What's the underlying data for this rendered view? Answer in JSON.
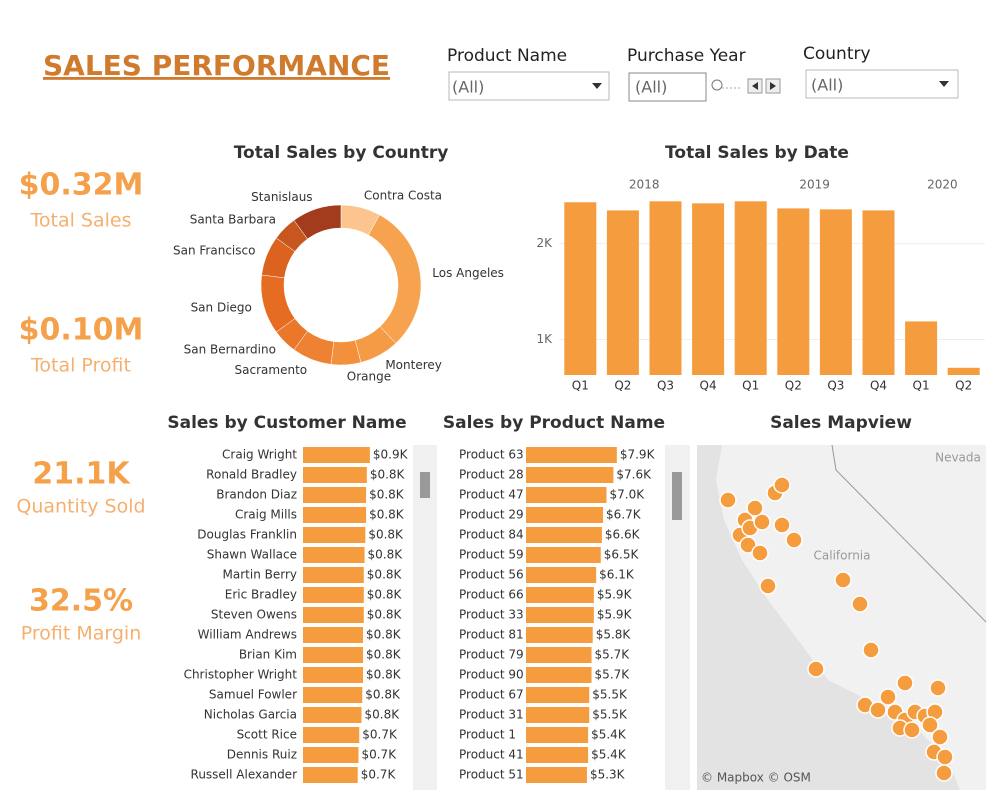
{
  "header": {
    "title": "SALES PERFORMANCE"
  },
  "filters": [
    {
      "label": "Product Name",
      "value": "(All)"
    },
    {
      "label": "Purchase Year",
      "value": "(All)"
    },
    {
      "label": "Country",
      "value": "(All)"
    }
  ],
  "kpis": [
    {
      "value": "$0.32M",
      "label": "Total Sales"
    },
    {
      "value": "$0.10M",
      "label": "Total Profit"
    },
    {
      "value": "21.1K",
      "label": "Quantity Sold"
    },
    {
      "value": "32.5%",
      "label": "Profit Margin"
    }
  ],
  "chart_data": [
    {
      "type": "pie",
      "title": "Total Sales by Country",
      "categories": [
        "Contra Costa",
        "Los Angeles",
        "Monterey",
        "Orange",
        "Sacramento",
        "San Bernardino",
        "San Diego",
        "San Francisco",
        "Santa Barbara",
        "Stanislaus"
      ],
      "values": [
        8,
        30,
        8,
        6,
        8,
        5,
        12,
        8,
        5,
        10
      ],
      "colors": [
        "#fcc590",
        "#f7a24e",
        "#f59b45",
        "#f2903c",
        "#ee8232",
        "#ea772a",
        "#e66c22",
        "#dc6220",
        "#c8561f",
        "#a33c1c"
      ]
    },
    {
      "type": "bar",
      "title": "Total Sales by Date",
      "categories": [
        "Q1",
        "Q2",
        "Q3",
        "Q4",
        "Q1",
        "Q2",
        "Q3",
        "Q4",
        "Q1",
        "Q2"
      ],
      "years": [
        "2018",
        null,
        null,
        null,
        "2019",
        null,
        null,
        null,
        "2020",
        null
      ],
      "values": [
        2432,
        2347,
        2442,
        2421,
        2442,
        2368,
        2358,
        2347,
        1189,
        705
      ],
      "color": "#f59c3e",
      "ylim": [
        630,
        2560
      ],
      "yticks": [
        {
          "value": 1000,
          "label": "1K"
        },
        {
          "value": 2000,
          "label": "2K"
        }
      ],
      "grid": true
    },
    {
      "type": "hbar",
      "title": "Sales by Customer Name",
      "categories": [
        "Craig Wright",
        "Ronald Bradley",
        "Brandon Diaz",
        "Craig Mills",
        "Douglas Franklin",
        "Shawn Wallace",
        "Martin Berry",
        "Eric Bradley",
        "Steven Owens",
        "William Andrews",
        "Brian Kim",
        "Christopher Wright",
        "Samuel Fowler",
        "Nicholas Garcia",
        "Scott Rice",
        "Dennis Ruiz",
        "Russell Alexander"
      ],
      "values": [
        880,
        840,
        830,
        830,
        820,
        810,
        800,
        800,
        800,
        790,
        790,
        790,
        780,
        770,
        740,
        730,
        720
      ],
      "value_labels": [
        "$0.9K",
        "$0.8K",
        "$0.8K",
        "$0.8K",
        "$0.8K",
        "$0.8K",
        "$0.8K",
        "$0.8K",
        "$0.8K",
        "$0.8K",
        "$0.8K",
        "$0.8K",
        "$0.8K",
        "$0.8K",
        "$0.7K",
        "$0.7K",
        "$0.7K"
      ],
      "color": "#f59c3e",
      "xlim": [
        0,
        1000
      ]
    },
    {
      "type": "hbar",
      "title": "Sales by Product Name",
      "categories": [
        "Product 63",
        "Product 28",
        "Product 47",
        "Product 29",
        "Product 84",
        "Product 59",
        "Product 56",
        "Product 66",
        "Product 33",
        "Product 81",
        "Product 79",
        "Product 90",
        "Product 67",
        "Product 31",
        "Product 1",
        "Product 41",
        "Product 51"
      ],
      "values": [
        7900,
        7600,
        7000,
        6700,
        6600,
        6500,
        6100,
        5900,
        5900,
        5800,
        5700,
        5700,
        5500,
        5500,
        5400,
        5400,
        5300
      ],
      "value_labels": [
        "$7.9K",
        "$7.6K",
        "$7.0K",
        "$6.7K",
        "$6.6K",
        "$6.5K",
        "$6.1K",
        "$5.9K",
        "$5.9K",
        "$5.8K",
        "$5.7K",
        "$5.7K",
        "$5.5K",
        "$5.5K",
        "$5.4K",
        "$5.4K",
        "$5.3K"
      ],
      "color": "#f59c3e",
      "xlim": [
        0,
        10000
      ]
    }
  ],
  "map": {
    "title": "Sales Mapview",
    "labels": [
      "Nevada",
      "California"
    ],
    "credit": "© Mapbox © OSM"
  }
}
